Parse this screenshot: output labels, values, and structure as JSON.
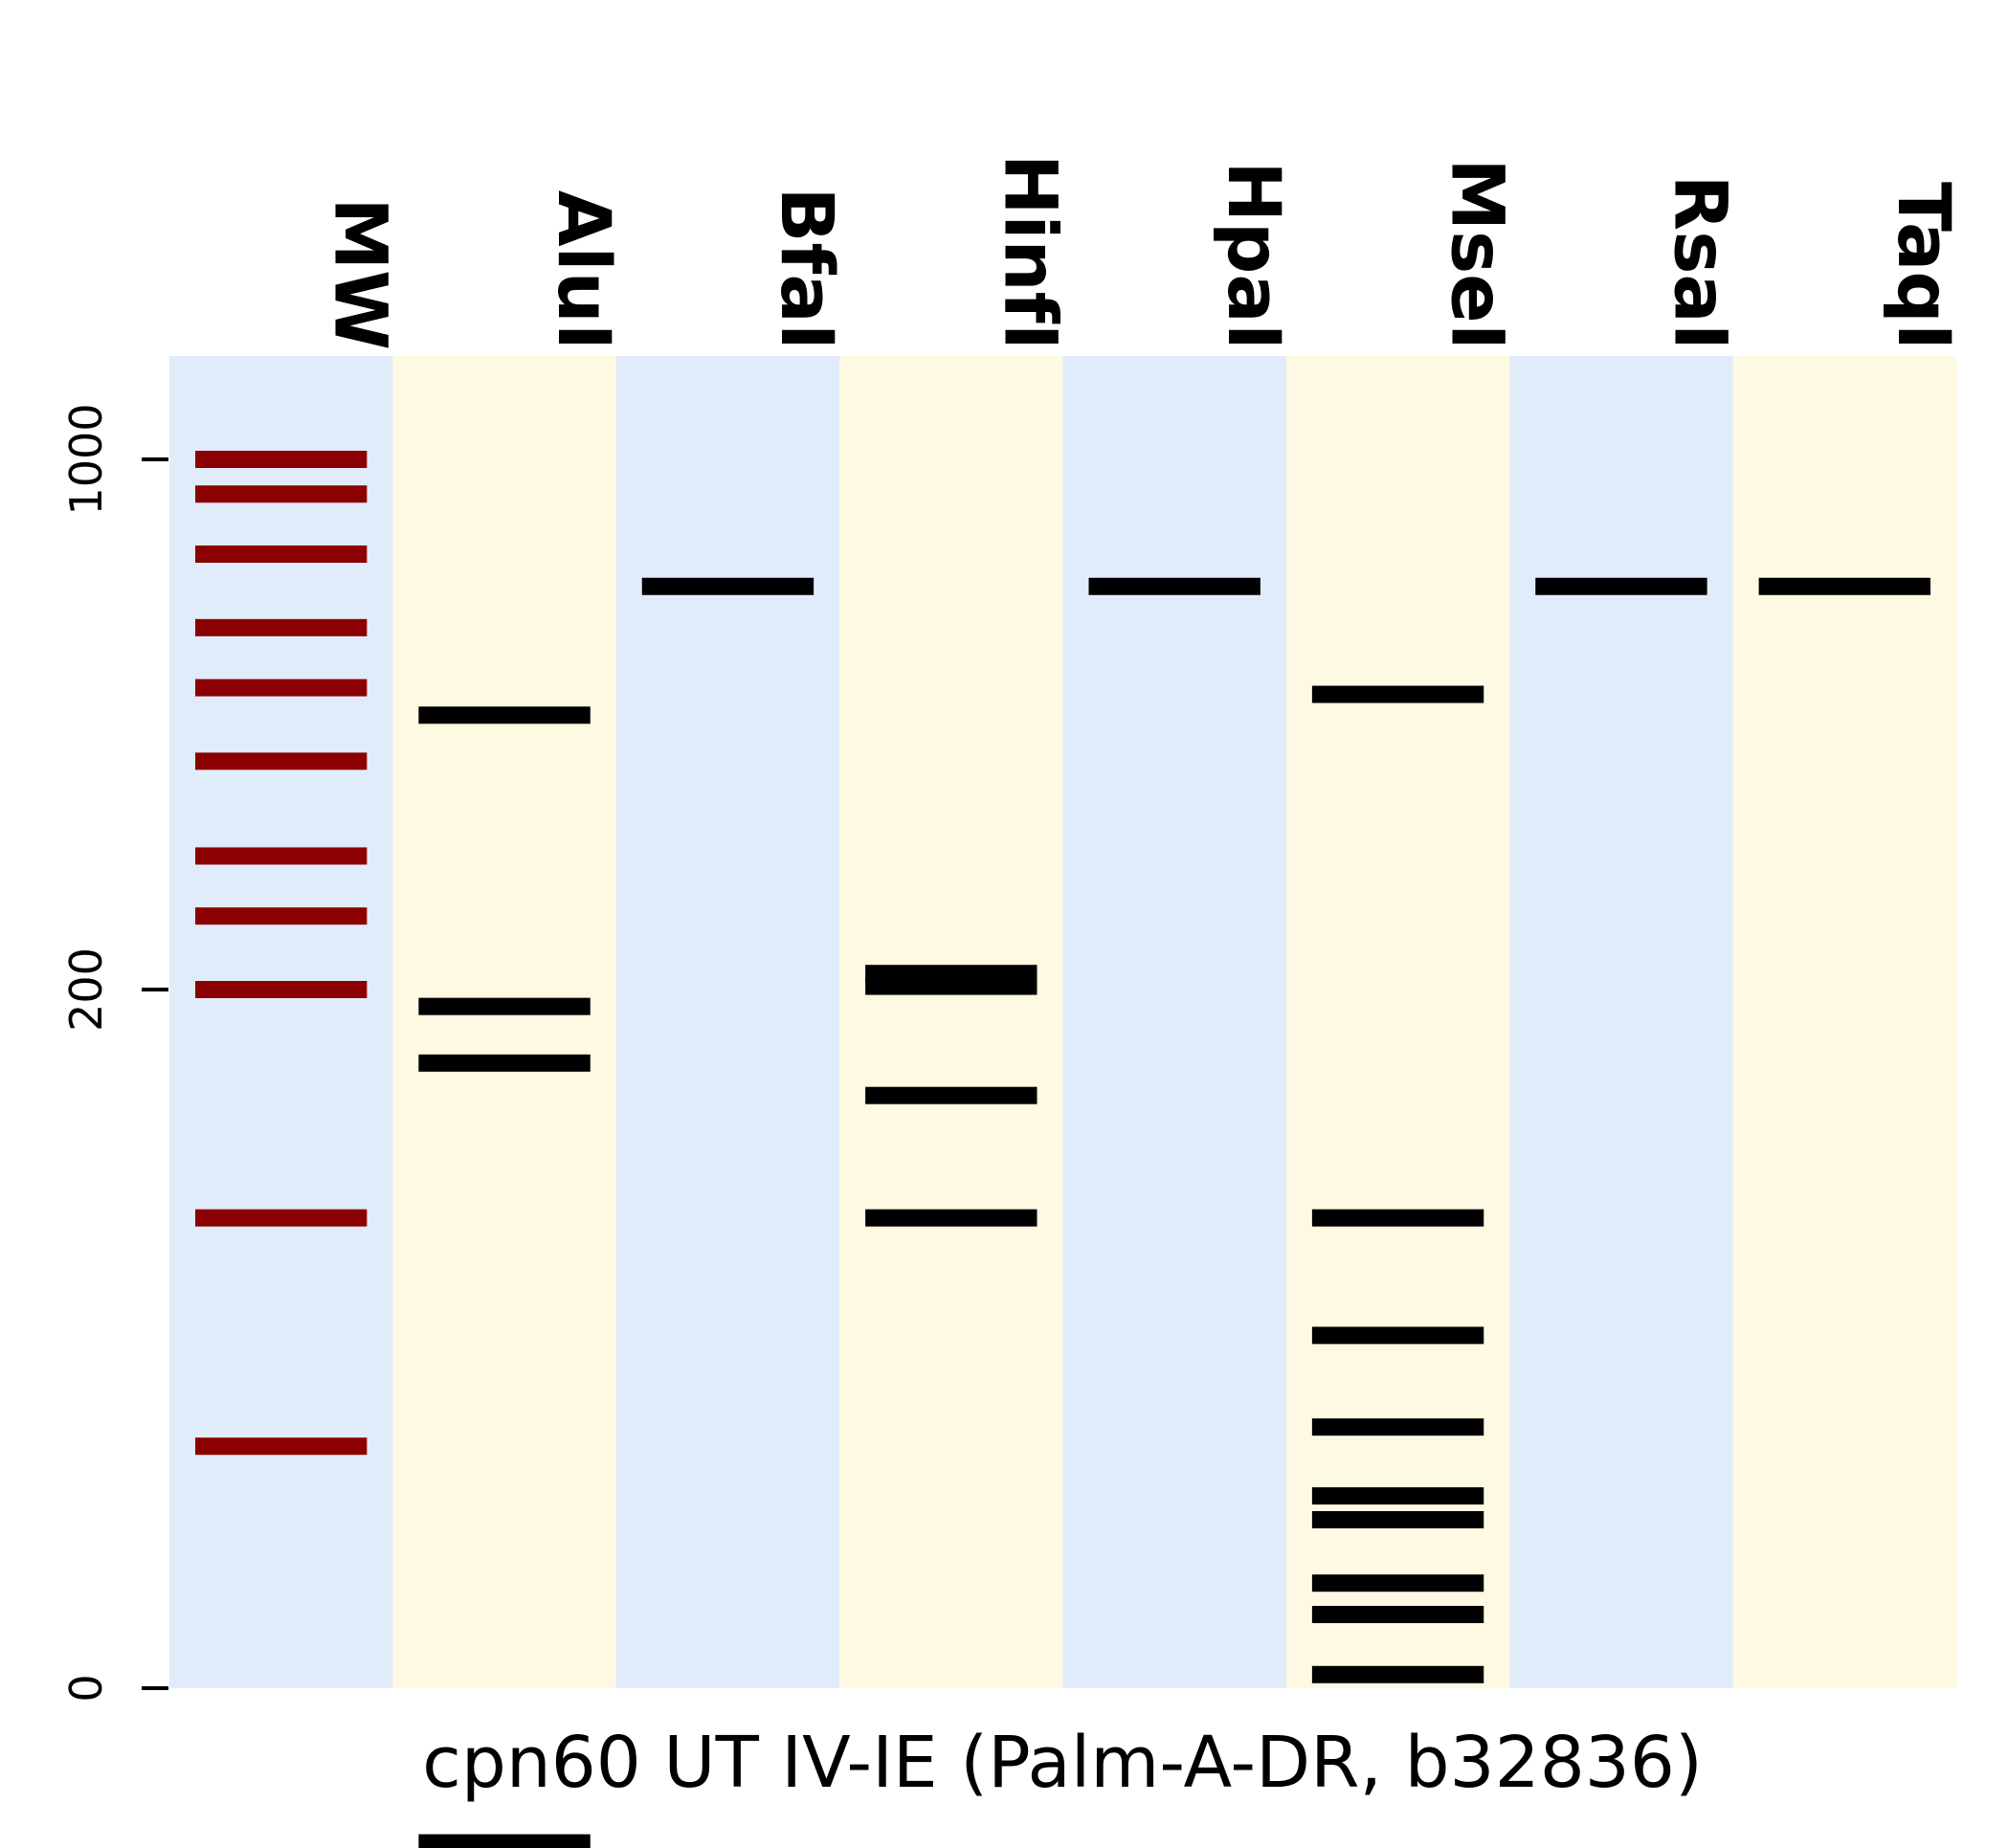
{
  "chart_data": {
    "type": "gel",
    "xlabel": "cpn60 UT IV-IE (Palm-A-DR, b32836)",
    "y_ticks": [
      {
        "value": 0,
        "label": "0"
      },
      {
        "value": 200,
        "label": "200"
      },
      {
        "value": 1000,
        "label": "1000"
      }
    ],
    "lane_colors": [
      "#e1ecfb",
      "#fdf9e2"
    ],
    "marker_color": "#8b0000",
    "band_color": "#000000",
    "lanes": [
      {
        "name": "MW",
        "marker": true,
        "bands": [
          1000,
          900,
          750,
          600,
          500,
          400,
          300,
          250,
          200,
          100,
          50
        ]
      },
      {
        "name": "AluI",
        "bands": [
          460,
          190,
          160,
          15
        ]
      },
      {
        "name": "BfaI",
        "bands": [
          680
        ]
      },
      {
        "name": "HinfI",
        "bands": [
          210,
          202,
          145,
          100
        ]
      },
      {
        "name": "HpaI",
        "bands": [
          680
        ]
      },
      {
        "name": "MseI",
        "bands": [
          490,
          100,
          70,
          53,
          43,
          40,
          33,
          30,
          25
        ]
      },
      {
        "name": "RsaI",
        "bands": [
          680
        ]
      },
      {
        "name": "TaqI",
        "bands": [
          680
        ]
      }
    ]
  }
}
